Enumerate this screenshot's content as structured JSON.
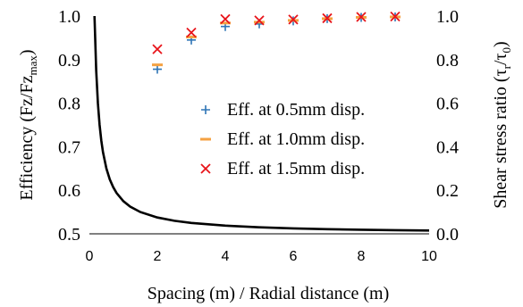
{
  "chart_data": {
    "type": "scatter",
    "x_axis": {
      "label": "Spacing (m) / Radial distance (m)",
      "range": [
        0,
        10
      ],
      "ticks": [
        "0",
        "2",
        "4",
        "6",
        "8",
        "10"
      ]
    },
    "y_axis_left": {
      "label_main": "Efficiency (Fz/Fz",
      "label_sub": "max",
      "label_end": ")",
      "range": [
        0.5,
        1.0
      ],
      "ticks": [
        "0.5",
        "0.6",
        "0.7",
        "0.8",
        "0.9",
        "1.0"
      ]
    },
    "y_axis_right": {
      "label_main": "Shear stress ratio (τ",
      "label_sub1": "r",
      "label_mid": "/τ",
      "label_sub2": "0",
      "label_end": ")",
      "range": [
        0.0,
        1.0
      ],
      "ticks": [
        "0.0",
        "0.2",
        "0.4",
        "0.6",
        "0.8",
        "1.0"
      ]
    },
    "grid": false,
    "legend_position": "right-middle",
    "series": [
      {
        "name": "Eff. at 0.5mm disp.",
        "marker": "plus",
        "color": "#2E75B6",
        "axis": "left",
        "x": [
          2,
          3,
          4,
          5,
          6,
          7,
          8,
          9
        ],
        "y": [
          0.878,
          0.945,
          0.976,
          0.982,
          0.989,
          0.994,
          0.997,
          0.998
        ]
      },
      {
        "name": "Eff. at 1.0mm disp.",
        "marker": "dash",
        "color": "#F4A142",
        "axis": "left",
        "x": [
          2,
          3,
          4,
          5,
          6,
          7,
          8,
          9
        ],
        "y": [
          0.888,
          0.952,
          0.984,
          0.986,
          0.99,
          0.994,
          0.997,
          0.998
        ]
      },
      {
        "name": "Eff. at 1.5mm disp.",
        "marker": "cross",
        "color": "#E8141A",
        "axis": "left",
        "x": [
          2,
          3,
          4,
          5,
          6,
          7,
          8,
          9
        ],
        "y": [
          0.924,
          0.962,
          0.993,
          0.99,
          0.992,
          0.995,
          0.998,
          0.999
        ]
      },
      {
        "marker": "none",
        "line": "solid",
        "color": "#000000",
        "axis": "right",
        "x": [
          0.15,
          0.2,
          0.25,
          0.3,
          0.35,
          0.4,
          0.5,
          0.6,
          0.7,
          0.8,
          1.0,
          1.2,
          1.5,
          2.0,
          2.5,
          3.0,
          4.0,
          5.0,
          6.0,
          7.0,
          8.0,
          9.0,
          10.0
        ],
        "y": [
          1.0,
          0.75,
          0.6,
          0.5,
          0.4286,
          0.375,
          0.3,
          0.25,
          0.2143,
          0.1875,
          0.15,
          0.125,
          0.1,
          0.075,
          0.06,
          0.05,
          0.0375,
          0.03,
          0.025,
          0.0214,
          0.0188,
          0.0167,
          0.015
        ]
      }
    ]
  }
}
